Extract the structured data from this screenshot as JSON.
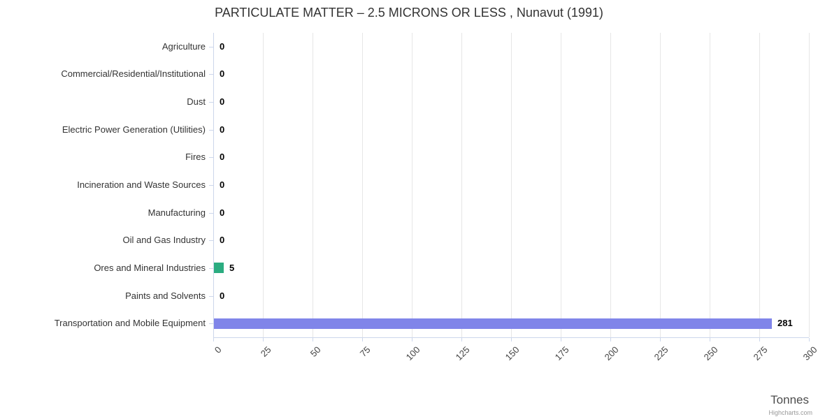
{
  "chart": {
    "title": "PARTICULATE MATTER – 2.5 MICRONS OR LESS , Nunavut (1991)",
    "xaxis_title": "Tonnes",
    "credits": "Highcharts.com"
  },
  "chart_data": {
    "type": "bar",
    "orientation": "horizontal",
    "title": "PARTICULATE MATTER – 2.5 MICRONS OR LESS , Nunavut (1991)",
    "categories": [
      "Agriculture",
      "Commercial/Residential/Institutional",
      "Dust",
      "Electric Power Generation (Utilities)",
      "Fires",
      "Incineration and Waste Sources",
      "Manufacturing",
      "Oil and Gas Industry",
      "Ores and Mineral Industries",
      "Paints and Solvents",
      "Transportation and Mobile Equipment"
    ],
    "values": [
      0,
      0,
      0,
      0,
      0,
      0,
      0,
      0,
      5,
      0,
      281
    ],
    "bar_colors": [
      null,
      null,
      null,
      null,
      null,
      null,
      null,
      null,
      "#2bac80",
      null,
      "#8085e9"
    ],
    "data_labels": [
      "0",
      "0",
      "0",
      "0",
      "0",
      "0",
      "0",
      "0",
      "5",
      "0",
      "281"
    ],
    "xlabel": "Tonnes",
    "ylabel": "",
    "xlim": [
      0,
      300
    ],
    "xticks": [
      0,
      25,
      50,
      75,
      100,
      125,
      150,
      175,
      200,
      225,
      250,
      275,
      300
    ],
    "grid": true,
    "legend": false,
    "credit": "Highcharts.com",
    "colors": {
      "grid": "#e6e6e6",
      "axis": "#ccd6eb",
      "title_text": "#333333",
      "label_text": "#333333"
    }
  }
}
